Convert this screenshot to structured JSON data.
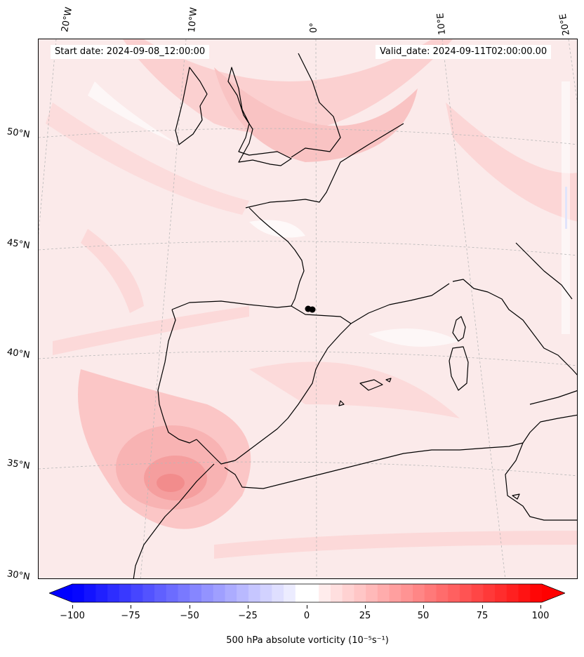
{
  "map": {
    "start_date": "Start date: 2024-09-08_12:00:00",
    "valid_date": "Valid_date: 2024-09-11T02:00:00.00",
    "lon_labels": [
      "20°W",
      "10°W",
      "0°",
      "10°E",
      "20°E"
    ],
    "lat_labels": [
      "50°N",
      "45°N",
      "40°N",
      "35°N",
      "30°N"
    ],
    "colors": {
      "background": "#fbeaea",
      "light_pink": "#fde0e0",
      "mid_pink": "#fbc9c9",
      "deep_pink": "#f7a9a9",
      "core_red": "#f38f8f",
      "coast": "#000000",
      "grid": "#b0b0b0"
    }
  },
  "colorbar": {
    "title": "500 hPa absolute vorticity (10⁻⁵s⁻¹)",
    "tick_labels": [
      "−100",
      "−75",
      "−50",
      "−25",
      "0",
      "25",
      "50",
      "75",
      "100"
    ],
    "min": -100,
    "max": 100,
    "levels": 40,
    "neg_color": "#0000ff",
    "pos_color": "#ff0000"
  }
}
